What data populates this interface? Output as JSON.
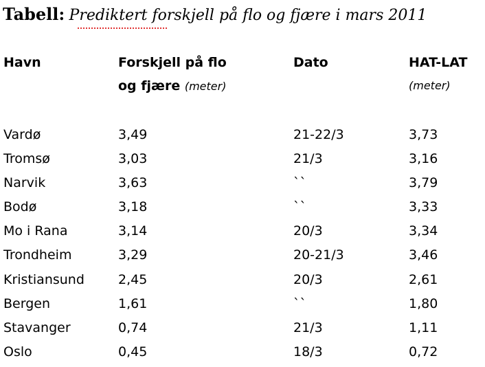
{
  "title": {
    "label": "Tabell:",
    "text": "Prediktert forskjell på flo og fjære i mars 2011"
  },
  "headers": {
    "havn": "Havn",
    "forskjell_line1": "Forskjell på flo",
    "forskjell_line2": "og fjære",
    "forskjell_unit": "(meter)",
    "dato": "Dato",
    "hatlat": "HAT-LAT",
    "hatlat_unit": "(meter)"
  },
  "rows": [
    {
      "havn": "Vardø",
      "forskjell": "3,49",
      "dato": "21-22/3",
      "hatlat": "3,73"
    },
    {
      "havn": "Tromsø",
      "forskjell": "3,03",
      "dato": "21/3",
      "hatlat": "3,16"
    },
    {
      "havn": "Narvik",
      "forskjell": "3,63",
      "dato": "``",
      "hatlat": "3,79"
    },
    {
      "havn": "Bodø",
      "forskjell": "3,18",
      "dato": "``",
      "hatlat": "3,33"
    },
    {
      "havn": "Mo i Rana",
      "forskjell": "3,14",
      "dato": "20/3",
      "hatlat": "3,34"
    },
    {
      "havn": "Trondheim",
      "forskjell": "3,29",
      "dato": "20-21/3",
      "hatlat": "3,46"
    },
    {
      "havn": "Kristiansund",
      "forskjell": "2,45",
      "dato": "20/3",
      "hatlat": "2,61"
    },
    {
      "havn": "Bergen",
      "forskjell": "1,61",
      "dato": "``",
      "hatlat": "1,80"
    },
    {
      "havn": "Stavanger",
      "forskjell": "0,74",
      "dato": "21/3",
      "hatlat": "1,11"
    },
    {
      "havn": "Oslo",
      "forskjell": "0,45",
      "dato": "18/3",
      "hatlat": "0,72"
    }
  ]
}
